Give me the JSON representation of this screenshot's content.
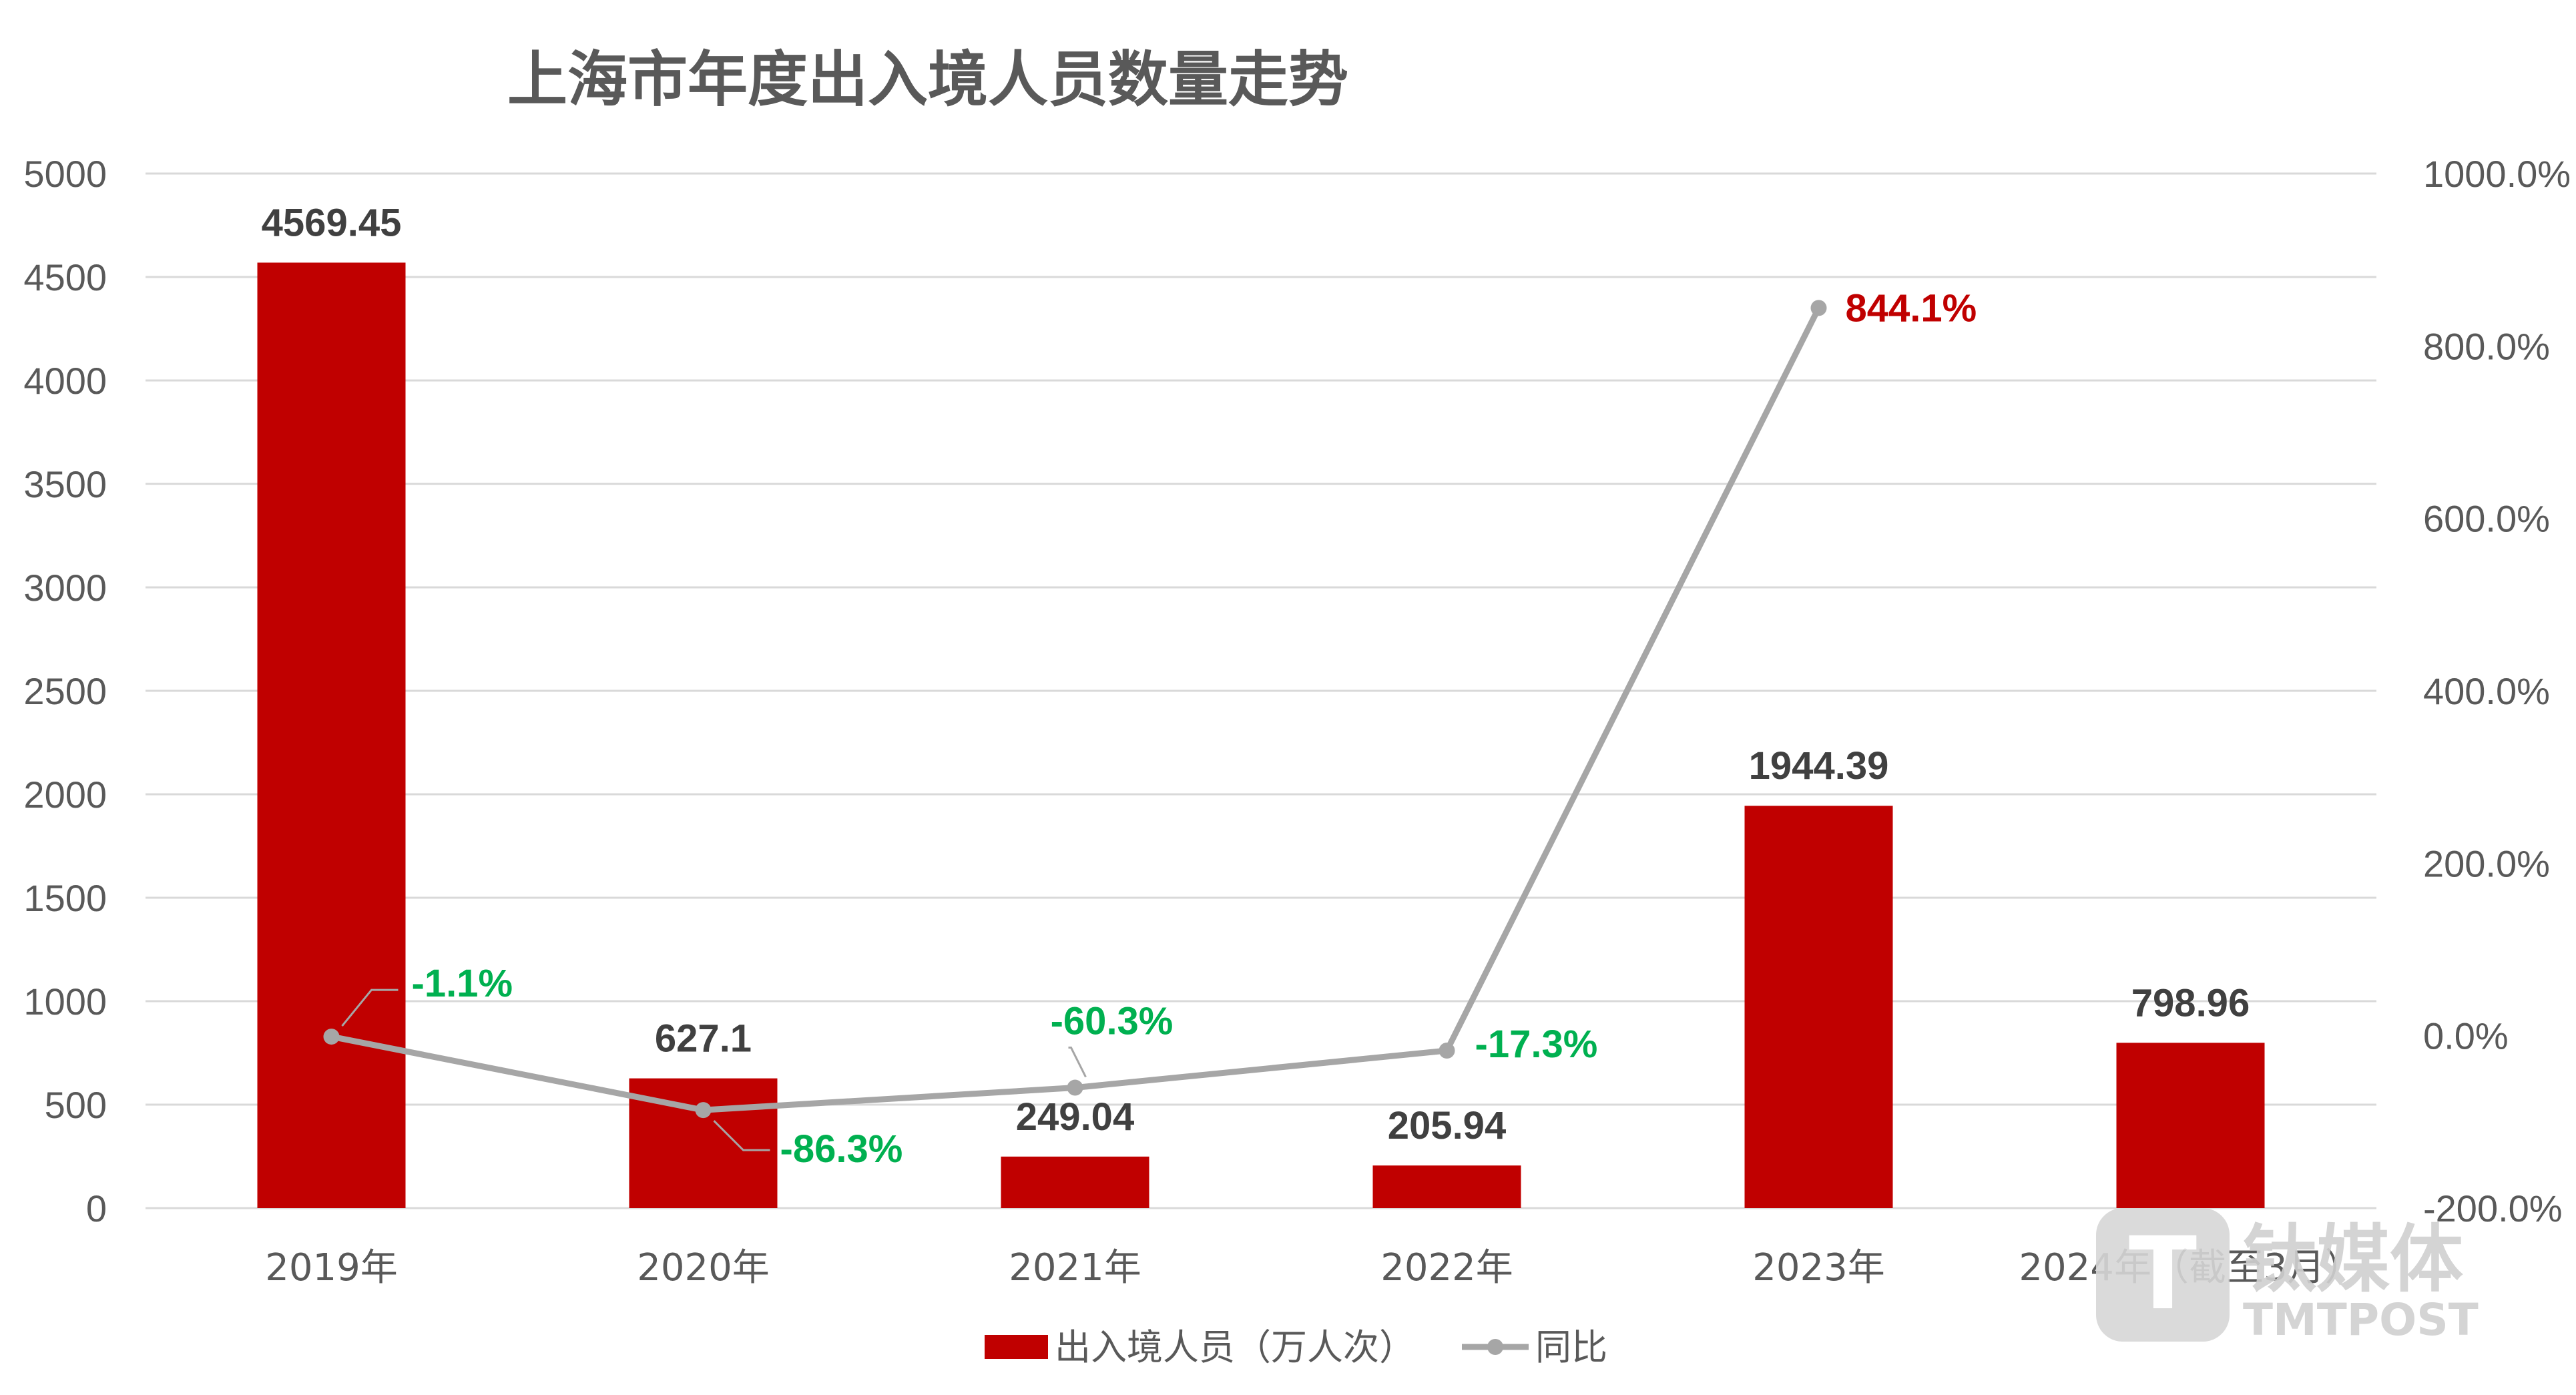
{
  "chart_data": {
    "type": "bar+line",
    "title": "上海市年度出入境人员数量走势",
    "categories": [
      "2019年",
      "2020年",
      "2021年",
      "2022年",
      "2023年",
      "2024年（截至3月）"
    ],
    "series": [
      {
        "name": "出入境人员（万人次）",
        "type": "bar",
        "axis": "left",
        "color": "#C00000",
        "values": [
          4569.45,
          627.1,
          249.04,
          205.94,
          1944.39,
          798.96
        ],
        "labels": [
          "4569.45",
          "627.1",
          "249.04",
          "205.94",
          "1944.39",
          "798.96"
        ]
      },
      {
        "name": "同比",
        "type": "line",
        "axis": "right",
        "color": "#A6A6A6",
        "values": [
          -1.1,
          -86.3,
          -60.3,
          -17.3,
          844.1,
          null
        ],
        "labels": [
          "-1.1%",
          "-86.3%",
          "-60.3%",
          "-17.3%",
          "844.1%",
          ""
        ],
        "label_colors": [
          "#00B050",
          "#00B050",
          "#00B050",
          "#00B050",
          "#C00000",
          ""
        ]
      }
    ],
    "left_axis": {
      "ylim": [
        0,
        5000
      ],
      "ticks": [
        0,
        500,
        1000,
        1500,
        2000,
        2500,
        3000,
        3500,
        4000,
        4500,
        5000
      ],
      "tick_labels": [
        "0",
        "500",
        "1000",
        "1500",
        "2000",
        "2500",
        "3000",
        "3500",
        "4000",
        "4500",
        "5000"
      ]
    },
    "right_axis": {
      "ylim": [
        -200,
        1000
      ],
      "ticks": [
        -200,
        0,
        200,
        400,
        600,
        800,
        1000
      ],
      "tick_labels": [
        "-200.0%",
        "0.0%",
        "200.0%",
        "400.0%",
        "600.0%",
        "800.0%",
        "1000.0%"
      ]
    },
    "grid": true,
    "legend_position": "bottom-center",
    "gridline_color": "#D9D9D9"
  },
  "watermark": {
    "logo_letter": "T",
    "brand_cn": "钛媒体",
    "brand_en": "TMTPOST"
  }
}
